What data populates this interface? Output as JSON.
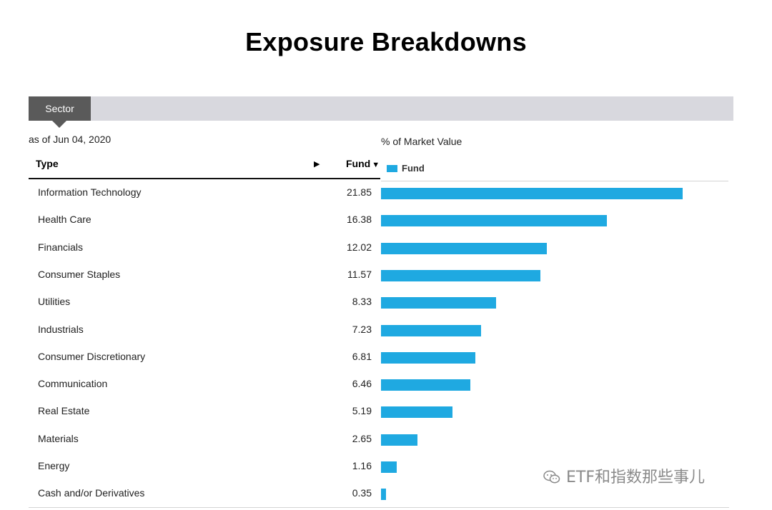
{
  "page": {
    "title": "Exposure Breakdowns"
  },
  "tabs": [
    {
      "label": "Sector",
      "active": true
    }
  ],
  "as_of": "as of Jun 04, 2020",
  "table": {
    "header_type": "Type",
    "header_fund": "Fund",
    "sort_indicator": "▶",
    "fund_sort_indicator": "▼"
  },
  "chart_label": "% of Market Value",
  "legend": {
    "label": "Fund",
    "color": "#1fa9e1"
  },
  "chart_data": {
    "type": "bar",
    "orientation": "horizontal",
    "title": "% of Market Value",
    "categories": [
      "Information Technology",
      "Health Care",
      "Financials",
      "Consumer Staples",
      "Utilities",
      "Industrials",
      "Consumer Discretionary",
      "Communication",
      "Real Estate",
      "Materials",
      "Energy",
      "Cash and/or Derivatives"
    ],
    "series": [
      {
        "name": "Fund",
        "values": [
          21.85,
          16.38,
          12.02,
          11.57,
          8.33,
          7.23,
          6.81,
          6.46,
          5.19,
          2.65,
          1.16,
          0.35
        ]
      }
    ],
    "value_labels": [
      "21.85",
      "16.38",
      "12.02",
      "11.57",
      "8.33",
      "7.23",
      "6.81",
      "6.46",
      "5.19",
      "2.65",
      "1.16",
      "0.35"
    ],
    "legend_position": "top-left",
    "grid": false
  },
  "watermark": {
    "text": "ETF和指数那些事儿",
    "icon": "wechat-icon"
  }
}
